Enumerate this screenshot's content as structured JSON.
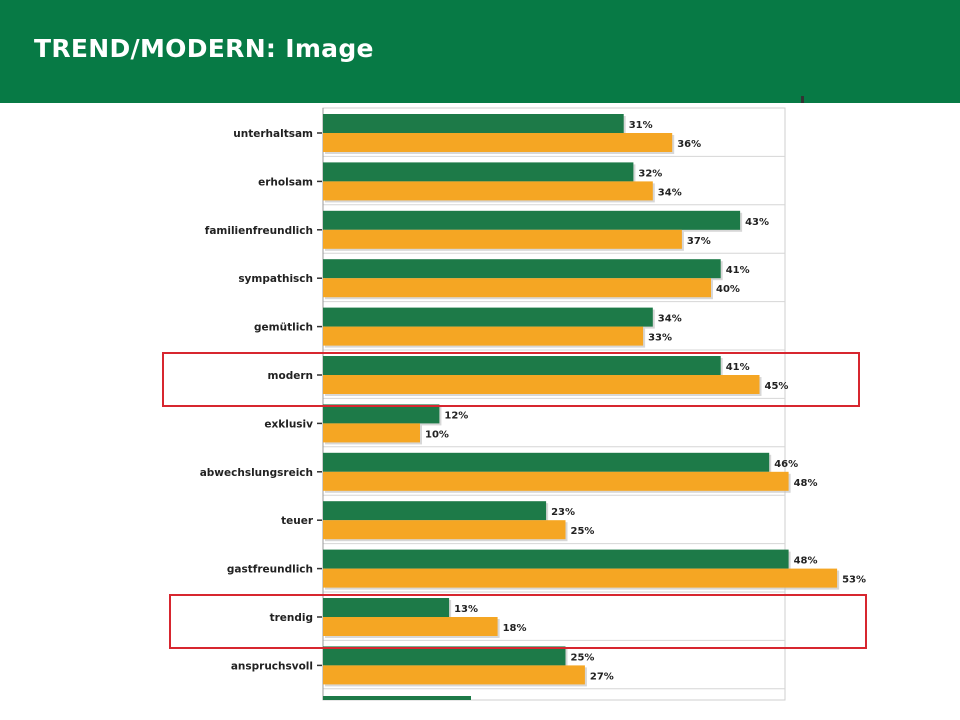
{
  "slide": {
    "title": "TREND/MODERN: Image"
  },
  "colors": {
    "header": "#077a45",
    "series_a": "#1d7a48",
    "series_b": "#f5a623",
    "highlight": "#d7262f"
  },
  "chart_data": {
    "type": "bar",
    "orientation": "horizontal",
    "categories": [
      "unterhaltsam",
      "erholsam",
      "familienfreundlich",
      "sympathisch",
      "gemütlich",
      "modern",
      "exklusiv",
      "abwechslungsreich",
      "teuer",
      "gastfreundlich",
      "trendig",
      "anspruchsvoll"
    ],
    "series": [
      {
        "color": "#1d7a48",
        "values": [
          31,
          32,
          43,
          41,
          34,
          41,
          12,
          46,
          23,
          48,
          13,
          25
        ]
      },
      {
        "color": "#f5a623",
        "values": [
          36,
          34,
          37,
          40,
          33,
          45,
          10,
          48,
          25,
          53,
          18,
          27
        ]
      }
    ],
    "value_suffix": "%",
    "xlim": [
      0,
      100
    ],
    "grid": true,
    "highlighted_categories": [
      "modern",
      "trendig"
    ]
  }
}
